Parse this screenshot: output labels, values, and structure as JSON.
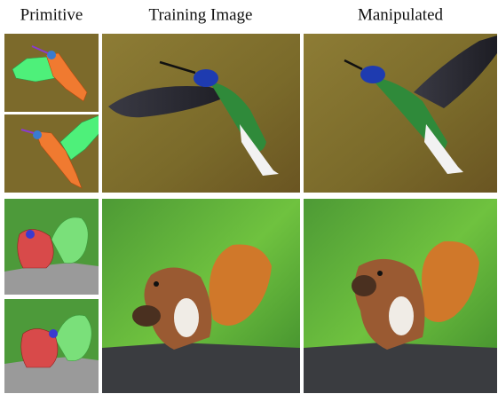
{
  "header": {
    "columns": [
      "Primitive",
      "Training Image",
      "Manipulated"
    ]
  }
}
